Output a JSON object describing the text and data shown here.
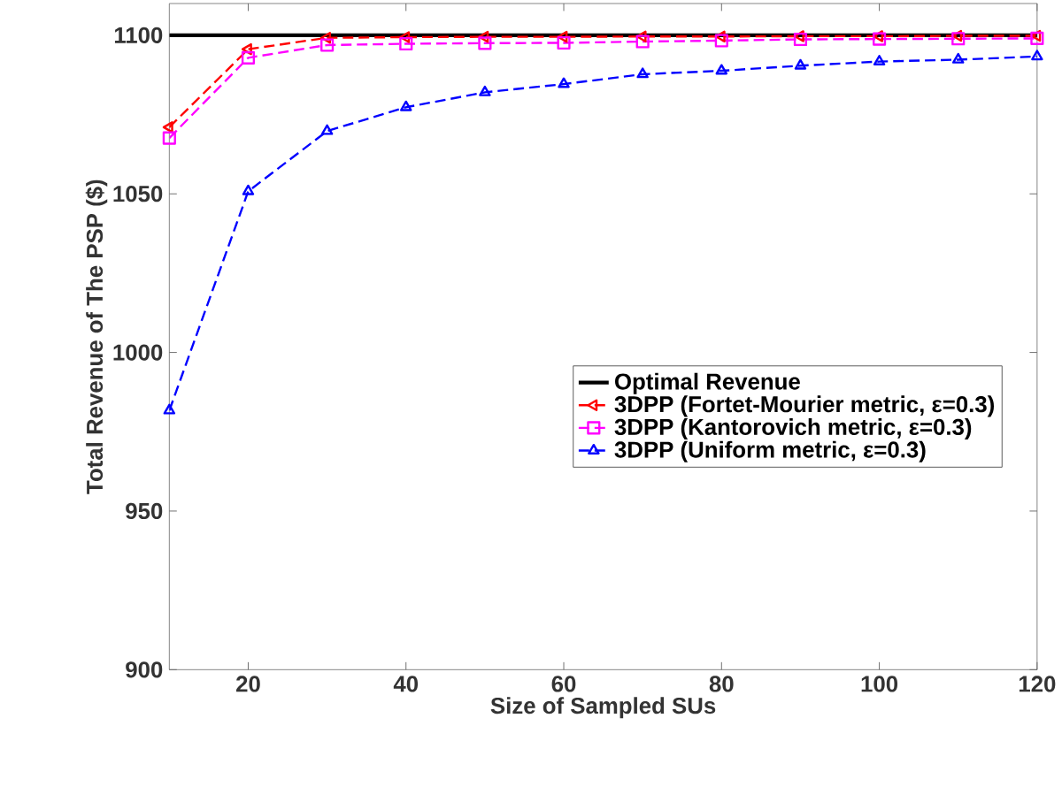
{
  "chart_data": {
    "type": "line",
    "xlabel": "Size of Sampled SUs",
    "ylabel": "Total Revenue of The PSP ($)",
    "x": [
      10,
      20,
      30,
      40,
      50,
      60,
      70,
      80,
      90,
      100,
      110,
      120
    ],
    "xlim": [
      10,
      120
    ],
    "xticks": [
      20,
      40,
      60,
      80,
      100,
      120
    ],
    "ylim": [
      900,
      1110
    ],
    "yticks": [
      900,
      950,
      1000,
      1050,
      1100
    ],
    "grid": false,
    "legend": "right",
    "series": [
      {
        "name": "Optimal Revenue",
        "color": "#000000",
        "line_style": "solid",
        "marker": "none",
        "values": [
          1100,
          1100,
          1100,
          1100,
          1100,
          1100,
          1100,
          1100,
          1100,
          1100,
          1100,
          1100
        ]
      },
      {
        "name": "3DPP (Fortet-Mourier metric, ε=0.3)",
        "color": "#ff0000",
        "line_style": "dashed",
        "marker": "triangle-left",
        "values": [
          1071,
          1095.6,
          1099.2,
          1099.4,
          1099.5,
          1099.5,
          1099.6,
          1099.6,
          1099.7,
          1099.7,
          1099.8,
          1099.8
        ]
      },
      {
        "name": "3DPP (Kantorovich metric, ε=0.3)",
        "color": "#ff00ff",
        "line_style": "dashed",
        "marker": "square",
        "values": [
          1067.6,
          1092.9,
          1096.9,
          1097.3,
          1097.5,
          1097.6,
          1098,
          1098.3,
          1098.7,
          1098.8,
          1098.9,
          1099
        ]
      },
      {
        "name": "3DPP (Uniform metric, ε=0.3)",
        "color": "#0000ff",
        "line_style": "dashed",
        "marker": "triangle",
        "values": [
          981.7,
          1050.8,
          1069.8,
          1077.3,
          1082,
          1084.6,
          1087.7,
          1088.8,
          1090.4,
          1091.7,
          1092.3,
          1093.3
        ]
      }
    ]
  }
}
